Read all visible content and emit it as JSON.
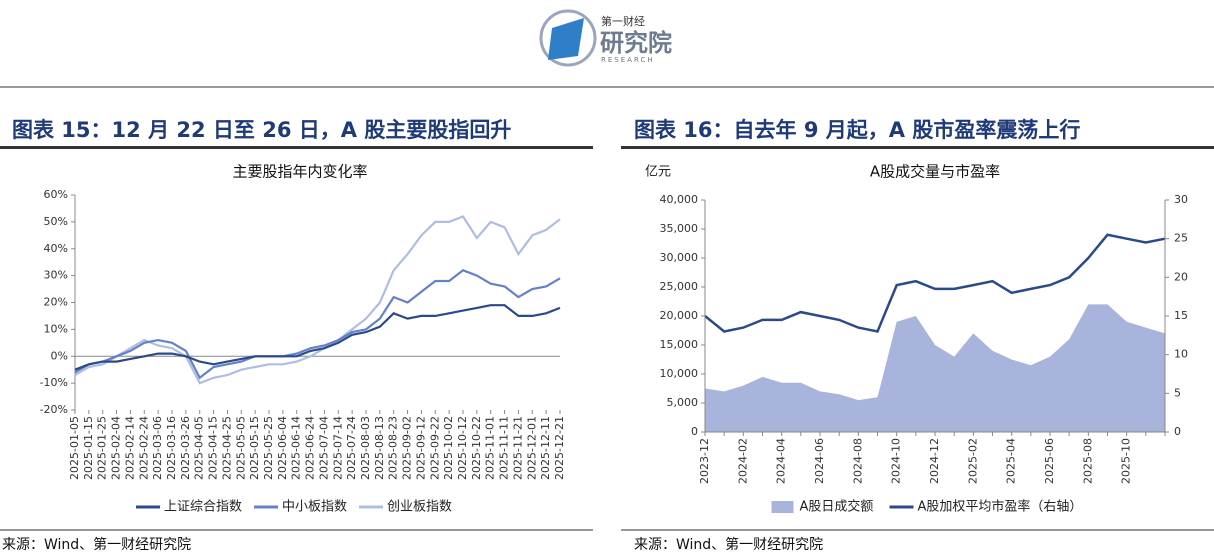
{
  "logo": {
    "small": "第一财经",
    "main": "研究院",
    "en": "RESEARCH"
  },
  "figures": [
    {
      "heading": "图表 15：12 月 22 日至 26 日，A 股主要股指回升",
      "source": "来源：Wind、第一财经研究院"
    },
    {
      "heading": "图表 16：自去年 9 月起，A 股市盈率震荡上行",
      "source": "来源：Wind、第一财经研究院"
    }
  ],
  "chart_data": [
    {
      "type": "line",
      "title": "主要股指年内变化率",
      "categories": [
        "2025-01-05",
        "2025-01-15",
        "2025-01-25",
        "2025-02-04",
        "2025-02-14",
        "2025-02-24",
        "2025-03-06",
        "2025-03-16",
        "2025-03-26",
        "2025-04-05",
        "2025-04-15",
        "2025-04-25",
        "2025-05-05",
        "2025-05-15",
        "2025-05-25",
        "2025-06-04",
        "2025-06-14",
        "2025-06-24",
        "2025-07-04",
        "2025-07-14",
        "2025-07-24",
        "2025-08-03",
        "2025-08-13",
        "2025-08-23",
        "2025-09-02",
        "2025-09-12",
        "2025-09-22",
        "2025-10-02",
        "2025-10-12",
        "2025-10-22",
        "2025-11-01",
        "2025-11-11",
        "2025-11-21",
        "2025-12-01",
        "2025-12-11",
        "2025-12-21"
      ],
      "series": [
        {
          "name": "上证综合指数",
          "color": "#2b4a8b",
          "values": [
            -5,
            -3,
            -2,
            -2,
            -1,
            0,
            1,
            1,
            0,
            -2,
            -3,
            -2,
            -1,
            0,
            0,
            0,
            0,
            2,
            3,
            5,
            8,
            9,
            11,
            16,
            14,
            15,
            15,
            16,
            17,
            18,
            19,
            19,
            15,
            15,
            16,
            18
          ]
        },
        {
          "name": "中小板指数",
          "color": "#6481c8",
          "values": [
            -6,
            -3,
            -2,
            0,
            2,
            5,
            6,
            5,
            2,
            -8,
            -4,
            -3,
            -2,
            0,
            0,
            0,
            1,
            3,
            4,
            6,
            9,
            10,
            14,
            22,
            20,
            24,
            28,
            28,
            32,
            30,
            27,
            26,
            22,
            25,
            26,
            29
          ]
        },
        {
          "name": "创业板指数",
          "color": "#afbde3",
          "values": [
            -7,
            -4,
            -3,
            0,
            3,
            6,
            4,
            3,
            0,
            -10,
            -8,
            -7,
            -5,
            -4,
            -3,
            -3,
            -2,
            0,
            3,
            6,
            10,
            14,
            20,
            32,
            38,
            45,
            50,
            50,
            52,
            44,
            50,
            48,
            38,
            45,
            47,
            51
          ]
        }
      ],
      "ylim": [
        -20,
        60
      ],
      "yticks": [
        {
          "value": -20,
          "label": "-20%"
        },
        {
          "value": -10,
          "label": "-10%"
        },
        {
          "value": 0,
          "label": "0%"
        },
        {
          "value": 10,
          "label": "10%"
        },
        {
          "value": 20,
          "label": "20%"
        },
        {
          "value": 30,
          "label": "30%"
        },
        {
          "value": 40,
          "label": "40%"
        },
        {
          "value": 50,
          "label": "50%"
        },
        {
          "value": 60,
          "label": "60%"
        }
      ],
      "grid": false,
      "legend": "bottom"
    },
    {
      "type": "combo",
      "title": "A股成交量与市盈率",
      "y_label": "亿元",
      "categories": [
        "2023-12",
        null,
        "2024-02",
        null,
        "2024-04",
        null,
        "2024-06",
        null,
        "2024-08",
        null,
        "2024-10",
        null,
        "2024-12",
        null,
        "2025-02",
        null,
        "2025-04",
        null,
        "2025-06",
        null,
        "2025-08",
        null,
        "2025-10",
        null,
        null
      ],
      "series": [
        {
          "name": "A股日成交额",
          "kind": "area",
          "color": "#a8b4dc",
          "values": [
            7500,
            7000,
            8000,
            9500,
            8500,
            8500,
            7000,
            6500,
            5500,
            6000,
            19000,
            20000,
            15000,
            13000,
            17000,
            14000,
            12500,
            11500,
            13000,
            16000,
            22000,
            22000,
            19000,
            18000,
            17000
          ]
        },
        {
          "name": "A股加权平均市盈率（右轴）",
          "kind": "line",
          "axis": "y2",
          "color": "#2b4a8b",
          "values": [
            15,
            13,
            13.5,
            14.5,
            14.5,
            15.5,
            15,
            14.5,
            13.5,
            13,
            19,
            19.5,
            18.5,
            18.5,
            19,
            19.5,
            18,
            18.5,
            19,
            20,
            22.5,
            25.5,
            25,
            24.5,
            25
          ]
        }
      ],
      "ylim": [
        0,
        40000
      ],
      "yticks": [
        0,
        {
          "value": 5000,
          "label": "5,000"
        },
        {
          "value": 10000,
          "label": "10,000"
        },
        {
          "value": 15000,
          "label": "15,000"
        },
        {
          "value": 20000,
          "label": "20,000"
        },
        {
          "value": 25000,
          "label": "25,000"
        },
        {
          "value": 30000,
          "label": "30,000"
        },
        {
          "value": 35000,
          "label": "35,000"
        },
        {
          "value": 40000,
          "label": "40,000"
        }
      ],
      "y2lim": [
        0,
        30
      ],
      "y2ticks": [
        0,
        5,
        10,
        15,
        20,
        25,
        30
      ],
      "grid": false,
      "legend": "bottom"
    }
  ]
}
